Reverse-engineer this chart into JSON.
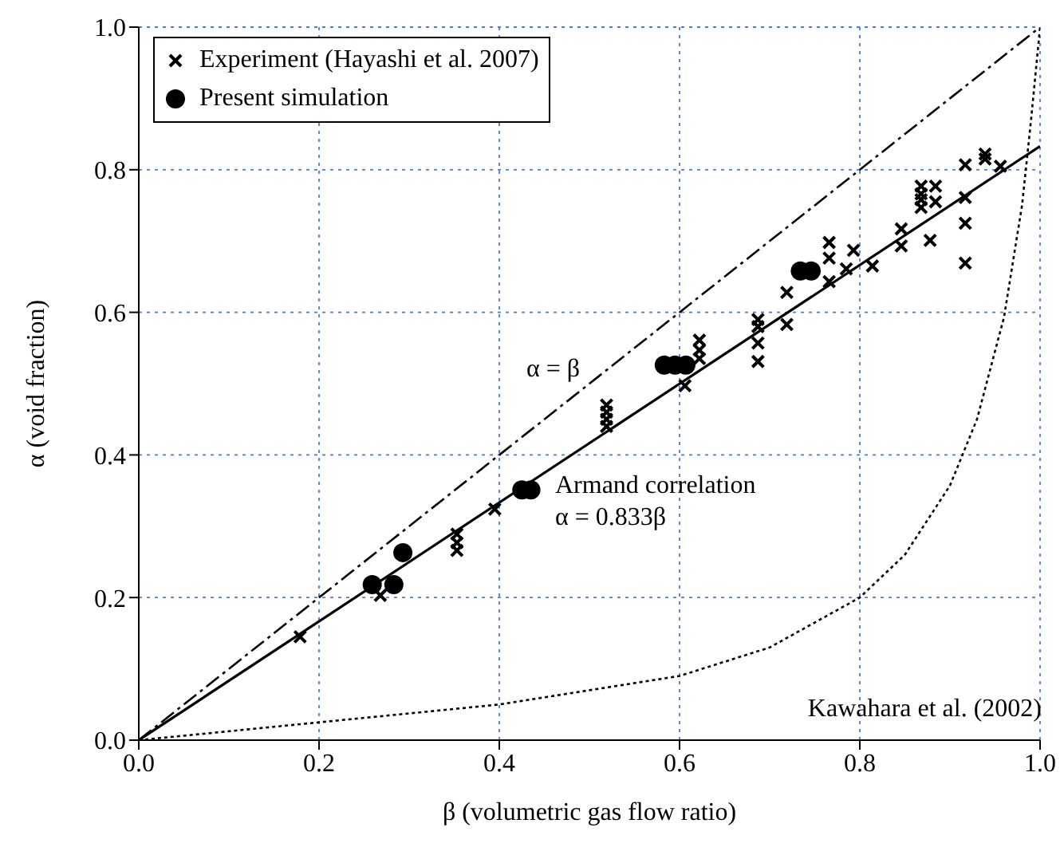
{
  "chart_data": {
    "type": "scatter",
    "xlabel": "β (volumetric gas flow ratio)",
    "ylabel": "α (void fraction)",
    "xlim": [
      0,
      1
    ],
    "ylim": [
      0,
      1
    ],
    "xticks": [
      {
        "value": 0,
        "label": "0.0"
      },
      {
        "value": 0.2,
        "label": "0.2"
      },
      {
        "value": 0.4,
        "label": "0.4"
      },
      {
        "value": 0.6,
        "label": "0.6"
      },
      {
        "value": 0.8,
        "label": "0.8"
      },
      {
        "value": 1,
        "label": "1.0"
      }
    ],
    "yticks": [
      {
        "value": 0,
        "label": "0.0"
      },
      {
        "value": 0.2,
        "label": "0.2"
      },
      {
        "value": 0.4,
        "label": "0.4"
      },
      {
        "value": 0.6,
        "label": "0.6"
      },
      {
        "value": 0.8,
        "label": "0.8"
      },
      {
        "value": 1,
        "label": "1.0"
      }
    ],
    "grid": true,
    "legend": "top left",
    "series": [
      {
        "name": "Experiment (Hayashi et al. 2007)",
        "marker": "cross",
        "color": "#000000",
        "x": [
          0.179,
          0.268,
          0.353,
          0.353,
          0.353,
          0.395,
          0.519,
          0.519,
          0.519,
          0.519,
          0.606,
          0.622,
          0.622,
          0.622,
          0.687,
          0.687,
          0.687,
          0.687,
          0.719,
          0.719,
          0.766,
          0.766,
          0.766,
          0.785,
          0.793,
          0.814,
          0.846,
          0.846,
          0.868,
          0.868,
          0.868,
          0.868,
          0.878,
          0.884,
          0.884,
          0.917,
          0.917,
          0.917,
          0.917,
          0.939,
          0.939,
          0.956
        ],
        "values": [
          0.145,
          0.203,
          0.266,
          0.277,
          0.289,
          0.324,
          0.44,
          0.45,
          0.46,
          0.47,
          0.497,
          0.535,
          0.547,
          0.561,
          0.531,
          0.557,
          0.58,
          0.59,
          0.583,
          0.628,
          0.643,
          0.676,
          0.698,
          0.661,
          0.687,
          0.665,
          0.693,
          0.717,
          0.747,
          0.758,
          0.766,
          0.777,
          0.701,
          0.755,
          0.777,
          0.669,
          0.725,
          0.761,
          0.807,
          0.815,
          0.822,
          0.805
        ]
      },
      {
        "name": "Present simulation",
        "marker": "circle",
        "color": "#000000",
        "x": [
          0.259,
          0.283,
          0.293,
          0.425,
          0.435,
          0.583,
          0.595,
          0.607,
          0.734,
          0.746
        ],
        "values": [
          0.218,
          0.218,
          0.263,
          0.351,
          0.351,
          0.526,
          0.526,
          0.526,
          0.658,
          0.658
        ]
      },
      {
        "type": "line",
        "line_style": "dashed",
        "color": "#000000",
        "x": [
          0,
          1
        ],
        "values": [
          0,
          1
        ]
      },
      {
        "type": "line",
        "line_style": "solid",
        "color": "#000000",
        "x": [
          0,
          1
        ],
        "values": [
          0,
          0.833
        ]
      },
      {
        "type": "line",
        "line_style": "dotted",
        "color": "#000000",
        "x": [
          0,
          0.2,
          0.4,
          0.6,
          0.7,
          0.8,
          0.85,
          0.9,
          0.93,
          0.96,
          0.98,
          0.99,
          1
        ],
        "values": [
          0,
          0.025,
          0.05,
          0.09,
          0.13,
          0.2,
          0.26,
          0.357,
          0.45,
          0.593,
          0.75,
          0.87,
          1
        ]
      }
    ],
    "annotations": [
      "α = β",
      "Armand correlation",
      "α = 0.833β",
      "Kawahara et al. (2002)"
    ]
  }
}
